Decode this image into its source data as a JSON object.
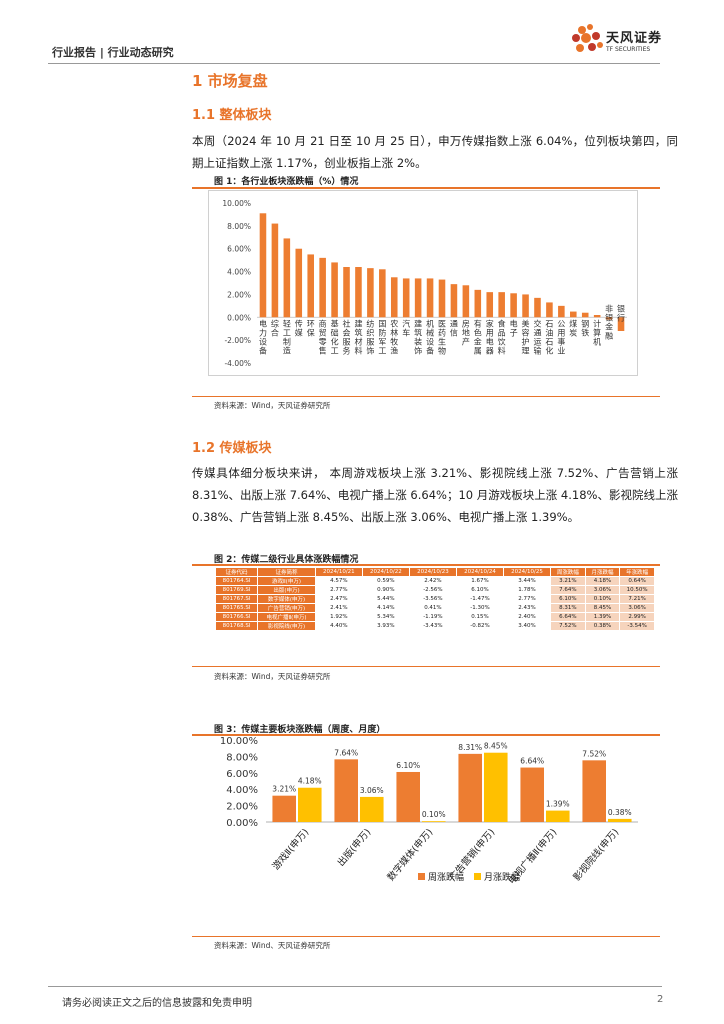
{
  "header": {
    "left_text": "行业报告 | 行业动态研究",
    "logo_cn": "天风证券",
    "logo_en": "TF SECURITIES"
  },
  "section1": {
    "title": "1 市场复盘"
  },
  "section11": {
    "title": "1.1 整体板块",
    "paragraph": "本周（2024 年 10 月 21 日至 10 月 25 日），申万传媒指数上涨 6.04%，位列板块第四，同期上证指数上涨 1.17%，创业板指上涨 2%。"
  },
  "fig1": {
    "title": "图 1：各行业板块涨跌幅（%）情况",
    "source": "资料来源：Wind，天风证券研究所"
  },
  "section12": {
    "title": "1.2 传媒板块",
    "paragraph": "传媒具体细分板块来讲，  本周游戏板块上涨 3.21%、影视院线上涨 7.52%、广告营销上涨 8.31%、出版上涨 7.64%、电视广播上涨 6.64%；10 月游戏板块上涨 4.18%、影视院线上涨 0.38%、广告营销上涨 8.45%、出版上涨 3.06%、电视广播上涨 1.39%。"
  },
  "fig2": {
    "title": "图 2：传媒二级行业具体涨跌幅情况",
    "source": "资料来源：Wind，天风证券研究所",
    "headers": [
      "证券代码",
      "证券简称",
      "2024/10/21",
      "2024/10/22",
      "2024/10/23",
      "2024/10/24",
      "2024/10/25",
      "周涨跌幅",
      "月涨跌幅",
      "年涨跌幅"
    ],
    "rows": [
      [
        "801764.SI",
        "游戏Ⅱ(申万)",
        "4.57%",
        "0.59%",
        "2.42%",
        "1.67%",
        "3.44%",
        "3.21%",
        "4.18%",
        "0.64%"
      ],
      [
        "801769.SI",
        "出版(申万)",
        "2.77%",
        "0.90%",
        "-2.56%",
        "6.10%",
        "1.78%",
        "7.64%",
        "3.06%",
        "10.50%"
      ],
      [
        "801767.SI",
        "数字媒体(申万)",
        "2.47%",
        "5.44%",
        "-3.56%",
        "-1.47%",
        "2.77%",
        "6.10%",
        "0.10%",
        "7.21%"
      ],
      [
        "801765.SI",
        "广告营销(申万)",
        "2.41%",
        "4.14%",
        "0.41%",
        "-1.30%",
        "2.43%",
        "8.31%",
        "8.45%",
        "3.06%"
      ],
      [
        "801766.SI",
        "电视广播Ⅱ(申万)",
        "1.92%",
        "5.34%",
        "-1.19%",
        "0.15%",
        "2.40%",
        "6.64%",
        "1.39%",
        "2.99%"
      ],
      [
        "801768.SI",
        "影视院线(申万)",
        "4.40%",
        "3.93%",
        "-3.43%",
        "-0.82%",
        "3.40%",
        "7.52%",
        "0.38%",
        "-3.54%"
      ]
    ]
  },
  "fig3": {
    "title": "图 3：传媒主要板块涨跌幅（周度、月度）",
    "source": "资料来源：Wind、天风证券研究所"
  },
  "footer": {
    "text": "请务必阅读正文之后的信息披露和免责申明",
    "page": "2"
  },
  "chart_data": [
    {
      "type": "bar",
      "title": "",
      "categories": [
        "电力设备",
        "综合",
        "轻工制造",
        "传媒",
        "环保",
        "商贸零售",
        "基础化工",
        "社会服务",
        "建筑材料",
        "纺织服饰",
        "国防军工",
        "农林牧渔",
        "汽车",
        "建筑装饰",
        "机械设备",
        "医药生物",
        "通信",
        "房地产",
        "有色金属",
        "家用电器",
        "食品饮料",
        "电子",
        "美容护理",
        "交通运输",
        "石油石化",
        "公用事业",
        "煤炭",
        "钢铁",
        "计算机",
        "非银金融",
        "银行"
      ],
      "values": [
        9.1,
        8.2,
        6.9,
        6.0,
        5.5,
        5.2,
        4.8,
        4.4,
        4.4,
        4.3,
        4.2,
        3.5,
        3.4,
        3.4,
        3.4,
        3.3,
        2.9,
        2.8,
        2.4,
        2.2,
        2.2,
        2.1,
        2.0,
        1.7,
        1.3,
        1.0,
        0.5,
        0.4,
        0.2,
        -0.2,
        -1.2
      ],
      "ylim": [
        -4,
        10
      ],
      "yticks": [
        "-4.00%",
        "-2.00%",
        "0.00%",
        "2.00%",
        "4.00%",
        "6.00%",
        "8.00%",
        "10.00%"
      ],
      "colors": {
        "bar": "#ed7d31"
      },
      "grid": false
    },
    {
      "type": "bar",
      "title": "",
      "categories": [
        "游戏Ⅱ(申万)",
        "出版(申万)",
        "数字媒体(申万)",
        "广告营销(申万)",
        "电视广播Ⅱ(申万)",
        "影视院线(申万)"
      ],
      "series": [
        {
          "name": "周涨跌幅",
          "values": [
            3.21,
            7.64,
            6.1,
            8.31,
            6.64,
            7.52
          ],
          "labels": [
            "3.21%",
            "7.64%",
            "6.10%",
            "8.31%",
            "6.64%",
            "7.52%"
          ],
          "color": "#ed7d31"
        },
        {
          "name": "月涨跌幅",
          "values": [
            4.18,
            3.06,
            0.1,
            8.45,
            1.39,
            0.38
          ],
          "labels": [
            "4.18%",
            "3.06%",
            "0.10%",
            "8.45%",
            "1.39%",
            "0.38%"
          ],
          "color": "#ffc000"
        }
      ],
      "ylim": [
        0,
        10
      ],
      "yticks": [
        "0.00%",
        "2.00%",
        "4.00%",
        "6.00%",
        "8.00%",
        "10.00%"
      ],
      "legend": "bottom",
      "grid": false
    }
  ]
}
